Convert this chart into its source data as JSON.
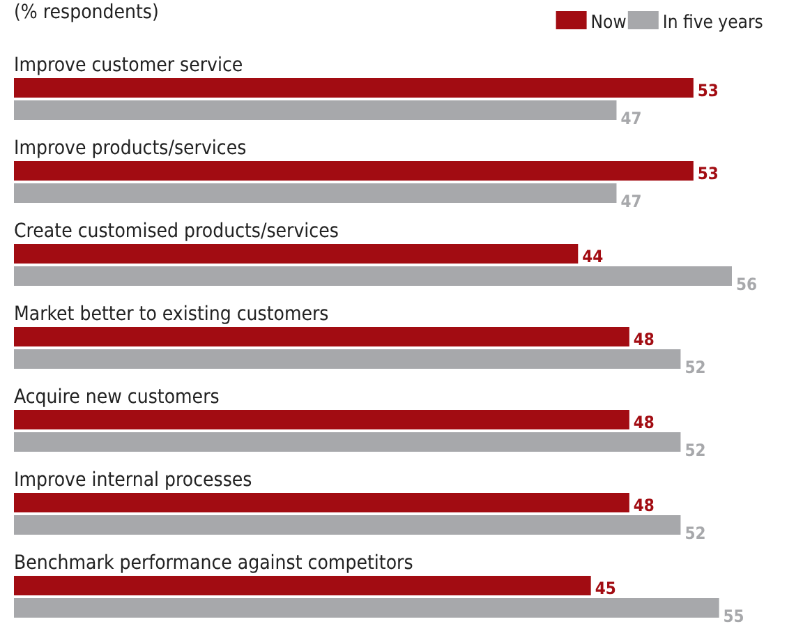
{
  "chart_data": {
    "type": "bar",
    "orientation": "horizontal",
    "subtitle": "(% respondents)",
    "categories": [
      "Improve customer service",
      "Improve products/services",
      "Create customised products/services",
      "Market better to existing customers",
      "Acquire new customers",
      "Improve internal processes",
      "Benchmark performance against competitors"
    ],
    "series": [
      {
        "name": "Now",
        "color": "#a20c12",
        "values": [
          53,
          53,
          44,
          48,
          48,
          48,
          45
        ]
      },
      {
        "name": "In five years",
        "color": "#a7a8ab",
        "values": [
          47,
          47,
          56,
          52,
          52,
          52,
          55
        ]
      }
    ],
    "data_labels": true,
    "legend": "top right"
  }
}
